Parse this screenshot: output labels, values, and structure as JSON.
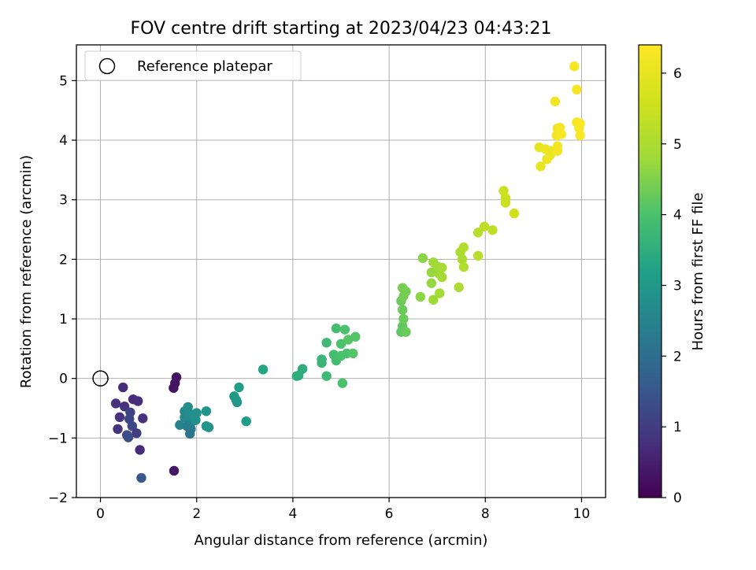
{
  "chart_data": {
    "type": "scatter",
    "title": "FOV centre drift starting at 2023/04/23 04:43:21",
    "xlabel": "Angular distance from reference (arcmin)",
    "ylabel": "Rotation from reference (arcmin)",
    "xlim": [
      -0.5,
      10.5
    ],
    "ylim": [
      -2.0,
      5.6
    ],
    "xticks": [
      0,
      2,
      4,
      6,
      8,
      10
    ],
    "yticks": [
      -2,
      -1,
      0,
      1,
      2,
      3,
      4,
      5
    ],
    "grid": true,
    "legend": {
      "position": "top-left",
      "entries": [
        "Reference platepar"
      ]
    },
    "reference_point": {
      "x": 0,
      "y": 0
    },
    "colorbar": {
      "label": "Hours from first FF file",
      "range": [
        0,
        6.4
      ],
      "ticks": [
        0,
        1,
        2,
        3,
        4,
        5,
        6
      ],
      "colormap": "viridis"
    },
    "series": [
      {
        "points": [
          {
            "x": 1.58,
            "y": 0.02,
            "c": 0.3
          },
          {
            "x": 1.55,
            "y": -0.08,
            "c": 0.3
          },
          {
            "x": 1.52,
            "y": -0.16,
            "c": 0.3
          },
          {
            "x": 1.53,
            "y": -1.55,
            "c": 0.35
          },
          {
            "x": 0.47,
            "y": -0.15,
            "c": 0.7
          },
          {
            "x": 0.32,
            "y": -0.42,
            "c": 0.8
          },
          {
            "x": 0.5,
            "y": -0.47,
            "c": 0.8
          },
          {
            "x": 0.4,
            "y": -0.65,
            "c": 0.8
          },
          {
            "x": 0.36,
            "y": -0.85,
            "c": 0.85
          },
          {
            "x": 0.68,
            "y": -0.35,
            "c": 0.7
          },
          {
            "x": 0.78,
            "y": -0.38,
            "c": 0.75
          },
          {
            "x": 0.88,
            "y": -0.67,
            "c": 0.8
          },
          {
            "x": 0.62,
            "y": -0.57,
            "c": 1.1
          },
          {
            "x": 0.6,
            "y": -0.68,
            "c": 1.2
          },
          {
            "x": 0.66,
            "y": -0.8,
            "c": 1.2
          },
          {
            "x": 0.75,
            "y": -0.92,
            "c": 1.0
          },
          {
            "x": 0.55,
            "y": -0.95,
            "c": 1.3
          },
          {
            "x": 0.58,
            "y": -0.99,
            "c": 1.3
          },
          {
            "x": 0.82,
            "y": -1.2,
            "c": 0.7
          },
          {
            "x": 0.85,
            "y": -1.67,
            "c": 1.5
          },
          {
            "x": 1.65,
            "y": -0.78,
            "c": 2.5
          },
          {
            "x": 1.75,
            "y": -0.55,
            "c": 2.6
          },
          {
            "x": 1.75,
            "y": -0.65,
            "c": 2.6
          },
          {
            "x": 1.82,
            "y": -0.48,
            "c": 2.7
          },
          {
            "x": 1.85,
            "y": -0.62,
            "c": 2.7
          },
          {
            "x": 1.9,
            "y": -0.72,
            "c": 2.6
          },
          {
            "x": 1.8,
            "y": -0.8,
            "c": 2.4
          },
          {
            "x": 1.88,
            "y": -0.85,
            "c": 2.3
          },
          {
            "x": 1.86,
            "y": -0.93,
            "c": 2.2
          },
          {
            "x": 1.95,
            "y": -0.6,
            "c": 2.8
          },
          {
            "x": 2.0,
            "y": -0.58,
            "c": 2.8
          },
          {
            "x": 1.98,
            "y": -0.7,
            "c": 2.8
          },
          {
            "x": 2.2,
            "y": -0.55,
            "c": 2.9
          },
          {
            "x": 2.2,
            "y": -0.8,
            "c": 2.9
          },
          {
            "x": 2.25,
            "y": -0.82,
            "c": 2.9
          },
          {
            "x": 2.78,
            "y": -0.3,
            "c": 3.0
          },
          {
            "x": 2.82,
            "y": -0.36,
            "c": 3.0
          },
          {
            "x": 2.84,
            "y": -0.4,
            "c": 3.0
          },
          {
            "x": 2.88,
            "y": -0.15,
            "c": 3.1
          },
          {
            "x": 3.03,
            "y": -0.72,
            "c": 3.1
          },
          {
            "x": 3.38,
            "y": 0.15,
            "c": 3.3
          },
          {
            "x": 4.08,
            "y": 0.04,
            "c": 3.5
          },
          {
            "x": 4.12,
            "y": 0.05,
            "c": 3.5
          },
          {
            "x": 4.2,
            "y": 0.16,
            "c": 3.5
          },
          {
            "x": 4.6,
            "y": 0.32,
            "c": 3.7
          },
          {
            "x": 4.6,
            "y": 0.26,
            "c": 3.7
          },
          {
            "x": 4.7,
            "y": 0.04,
            "c": 3.8
          },
          {
            "x": 4.7,
            "y": 0.6,
            "c": 3.8
          },
          {
            "x": 4.85,
            "y": 0.4,
            "c": 3.9
          },
          {
            "x": 4.9,
            "y": 0.3,
            "c": 3.9
          },
          {
            "x": 4.9,
            "y": 0.84,
            "c": 3.9
          },
          {
            "x": 5.0,
            "y": 0.58,
            "c": 4.0
          },
          {
            "x": 5.0,
            "y": 0.38,
            "c": 4.0
          },
          {
            "x": 5.03,
            "y": -0.08,
            "c": 4.0
          },
          {
            "x": 5.08,
            "y": 0.82,
            "c": 4.0
          },
          {
            "x": 5.12,
            "y": 0.42,
            "c": 4.0
          },
          {
            "x": 5.15,
            "y": 0.65,
            "c": 4.1
          },
          {
            "x": 5.25,
            "y": 0.42,
            "c": 4.1
          },
          {
            "x": 5.3,
            "y": 0.7,
            "c": 4.1
          },
          {
            "x": 6.25,
            "y": 0.78,
            "c": 4.2
          },
          {
            "x": 6.28,
            "y": 0.88,
            "c": 4.2
          },
          {
            "x": 6.35,
            "y": 0.78,
            "c": 4.3
          },
          {
            "x": 6.25,
            "y": 1.3,
            "c": 4.3
          },
          {
            "x": 6.28,
            "y": 1.15,
            "c": 4.3
          },
          {
            "x": 6.3,
            "y": 1.0,
            "c": 4.3
          },
          {
            "x": 6.28,
            "y": 1.52,
            "c": 4.4
          },
          {
            "x": 6.3,
            "y": 1.38,
            "c": 4.4
          },
          {
            "x": 6.35,
            "y": 1.46,
            "c": 4.4
          },
          {
            "x": 6.65,
            "y": 1.37,
            "c": 4.6
          },
          {
            "x": 6.7,
            "y": 2.02,
            "c": 4.6
          },
          {
            "x": 6.88,
            "y": 1.78,
            "c": 4.7
          },
          {
            "x": 6.88,
            "y": 1.6,
            "c": 4.7
          },
          {
            "x": 6.92,
            "y": 1.32,
            "c": 4.8
          },
          {
            "x": 6.92,
            "y": 1.95,
            "c": 4.8
          },
          {
            "x": 7.0,
            "y": 1.88,
            "c": 4.8
          },
          {
            "x": 7.05,
            "y": 1.75,
            "c": 4.8
          },
          {
            "x": 7.05,
            "y": 1.43,
            "c": 4.9
          },
          {
            "x": 7.1,
            "y": 1.7,
            "c": 4.9
          },
          {
            "x": 7.1,
            "y": 1.86,
            "c": 4.9
          },
          {
            "x": 7.45,
            "y": 1.53,
            "c": 5.0
          },
          {
            "x": 7.48,
            "y": 2.12,
            "c": 5.0
          },
          {
            "x": 7.52,
            "y": 2.0,
            "c": 5.0
          },
          {
            "x": 7.55,
            "y": 1.87,
            "c": 5.1
          },
          {
            "x": 7.55,
            "y": 2.2,
            "c": 5.1
          },
          {
            "x": 7.85,
            "y": 2.06,
            "c": 5.2
          },
          {
            "x": 7.85,
            "y": 2.45,
            "c": 5.2
          },
          {
            "x": 7.98,
            "y": 2.55,
            "c": 5.3
          },
          {
            "x": 8.15,
            "y": 2.49,
            "c": 5.3
          },
          {
            "x": 8.38,
            "y": 3.15,
            "c": 5.5
          },
          {
            "x": 8.42,
            "y": 3.03,
            "c": 5.5
          },
          {
            "x": 8.42,
            "y": 2.95,
            "c": 5.5
          },
          {
            "x": 8.6,
            "y": 2.77,
            "c": 5.6
          },
          {
            "x": 9.12,
            "y": 3.88,
            "c": 6.0
          },
          {
            "x": 9.15,
            "y": 3.56,
            "c": 6.0
          },
          {
            "x": 9.25,
            "y": 3.85,
            "c": 6.1
          },
          {
            "x": 9.28,
            "y": 3.68,
            "c": 6.1
          },
          {
            "x": 9.35,
            "y": 3.75,
            "c": 6.1
          },
          {
            "x": 9.35,
            "y": 3.82,
            "c": 6.1
          },
          {
            "x": 9.45,
            "y": 4.65,
            "c": 6.2
          },
          {
            "x": 9.48,
            "y": 4.08,
            "c": 6.2
          },
          {
            "x": 9.5,
            "y": 4.2,
            "c": 6.2
          },
          {
            "x": 9.5,
            "y": 3.9,
            "c": 6.2
          },
          {
            "x": 9.5,
            "y": 3.82,
            "c": 6.2
          },
          {
            "x": 9.55,
            "y": 4.21,
            "c": 6.3
          },
          {
            "x": 9.58,
            "y": 4.1,
            "c": 6.3
          },
          {
            "x": 9.85,
            "y": 5.24,
            "c": 6.3
          },
          {
            "x": 9.9,
            "y": 4.85,
            "c": 6.3
          },
          {
            "x": 9.9,
            "y": 4.3,
            "c": 6.3
          },
          {
            "x": 9.95,
            "y": 4.2,
            "c": 6.35
          },
          {
            "x": 9.97,
            "y": 4.28,
            "c": 6.35
          },
          {
            "x": 9.97,
            "y": 4.08,
            "c": 6.35
          }
        ]
      }
    ]
  }
}
